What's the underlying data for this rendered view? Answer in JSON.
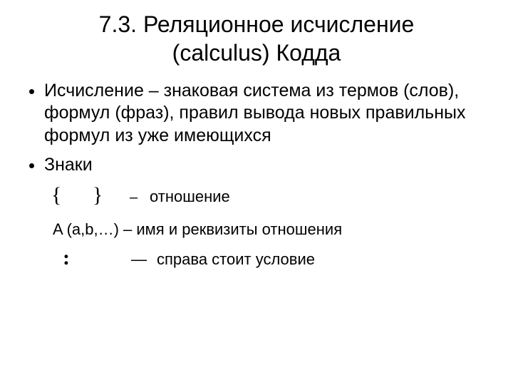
{
  "title_line1": "7.3. Реляционное исчисление",
  "title_line2": "(calculus) Кодда",
  "bullets": {
    "b1": "Исчисление – знаковая система из термов (слов), формул (фраз), правил вывода новых правильных формул из уже имеющихся",
    "b2": "Знаки"
  },
  "symbols": {
    "braces": "{  }",
    "braces_dash": "–",
    "braces_desc": "отношение",
    "relname": "A (a,b,…) – имя и реквизиты отношения",
    "colon": ":",
    "colon_dash": "―",
    "colon_desc": "справа стоит условие"
  }
}
